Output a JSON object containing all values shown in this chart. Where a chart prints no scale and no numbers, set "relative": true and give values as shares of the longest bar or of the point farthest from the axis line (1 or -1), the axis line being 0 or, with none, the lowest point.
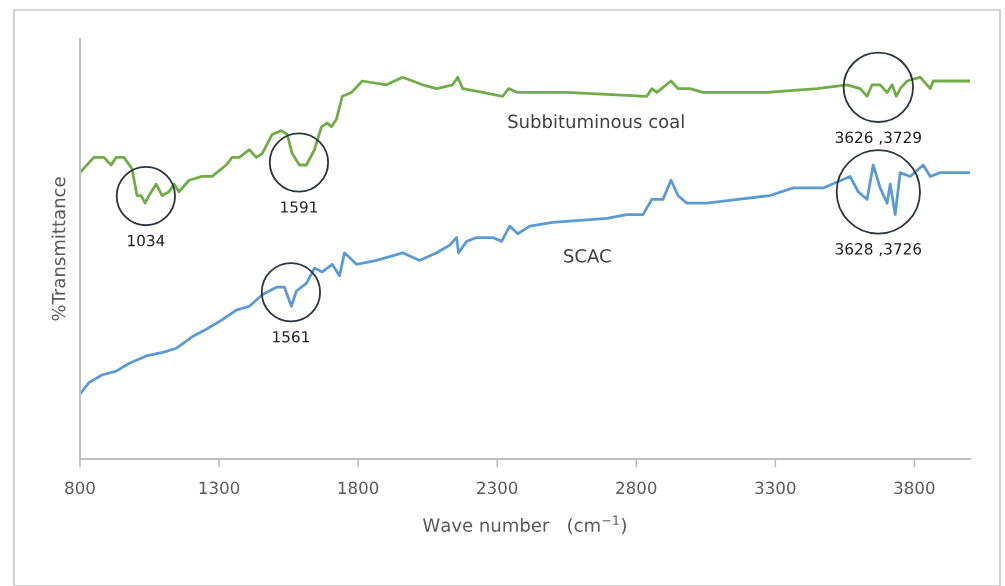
{
  "chart_data": {
    "type": "line",
    "relative": true,
    "xlabel": "Wave number   (cm$^{−1}$)",
    "ylabel": "%Transmittance",
    "xlim": [
      800,
      4000
    ],
    "xticks": [
      800,
      1300,
      1800,
      2300,
      2800,
      3300,
      3800
    ],
    "grid": false,
    "legend": false,
    "marker": "none",
    "line_style": "solid",
    "series": [
      {
        "name": "Subbituminous coal",
        "color": "#70ad47",
        "x": [
          800,
          850,
          886,
          912,
          930,
          958,
          987,
          1005,
          1020,
          1034,
          1048,
          1074,
          1095,
          1120,
          1138,
          1156,
          1192,
          1239,
          1275,
          1326,
          1347,
          1373,
          1409,
          1434,
          1455,
          1491,
          1524,
          1545,
          1563,
          1589,
          1614,
          1643,
          1668,
          1689,
          1704,
          1722,
          1743,
          1776,
          1815,
          1902,
          1960,
          2032,
          2082,
          2140,
          2158,
          2176,
          2248,
          2320,
          2341,
          2374,
          2550,
          2838,
          2856,
          2874,
          2925,
          2950,
          2993,
          3040,
          3270,
          3450,
          3558,
          3605,
          3630,
          3648,
          3677,
          3702,
          3720,
          3735,
          3749,
          3774,
          3821,
          3857,
          3868,
          4000
        ],
        "values": [
          0.75,
          0.79,
          0.79,
          0.77,
          0.79,
          0.79,
          0.76,
          0.69,
          0.69,
          0.67,
          0.69,
          0.72,
          0.69,
          0.7,
          0.72,
          0.7,
          0.73,
          0.74,
          0.74,
          0.77,
          0.79,
          0.79,
          0.81,
          0.79,
          0.8,
          0.85,
          0.86,
          0.85,
          0.8,
          0.77,
          0.77,
          0.81,
          0.87,
          0.88,
          0.87,
          0.89,
          0.95,
          0.96,
          0.99,
          0.98,
          1.0,
          0.98,
          0.97,
          0.98,
          1.0,
          0.97,
          0.96,
          0.95,
          0.97,
          0.96,
          0.96,
          0.95,
          0.97,
          0.96,
          0.99,
          0.97,
          0.97,
          0.96,
          0.96,
          0.97,
          0.98,
          0.97,
          0.95,
          0.98,
          0.98,
          0.96,
          0.98,
          0.95,
          0.97,
          0.99,
          1.0,
          0.97,
          0.99,
          0.99
        ]
      },
      {
        "name": "SCAC",
        "color": "#5b9bd5",
        "x": [
          800,
          832,
          879,
          930,
          976,
          1038,
          1102,
          1146,
          1203,
          1254,
          1301,
          1362,
          1409,
          1455,
          1506,
          1535,
          1560,
          1578,
          1614,
          1643,
          1671,
          1707,
          1733,
          1751,
          1794,
          1866,
          1960,
          2021,
          2082,
          2129,
          2154,
          2161,
          2190,
          2226,
          2284,
          2316,
          2345,
          2374,
          2417,
          2500,
          2694,
          2766,
          2824,
          2856,
          2896,
          2925,
          2950,
          2982,
          3054,
          3166,
          3281,
          3364,
          3472,
          3569,
          3598,
          3630,
          3652,
          3677,
          3702,
          3713,
          3731,
          3749,
          3785,
          3832,
          3857,
          3893,
          4000
        ],
        "values": [
          0.17,
          0.2,
          0.22,
          0.23,
          0.25,
          0.27,
          0.28,
          0.29,
          0.32,
          0.34,
          0.36,
          0.39,
          0.4,
          0.43,
          0.45,
          0.45,
          0.4,
          0.44,
          0.46,
          0.5,
          0.49,
          0.51,
          0.48,
          0.54,
          0.51,
          0.52,
          0.54,
          0.52,
          0.54,
          0.56,
          0.58,
          0.54,
          0.57,
          0.58,
          0.58,
          0.57,
          0.61,
          0.59,
          0.61,
          0.62,
          0.63,
          0.64,
          0.64,
          0.68,
          0.68,
          0.73,
          0.69,
          0.67,
          0.67,
          0.68,
          0.69,
          0.71,
          0.71,
          0.74,
          0.7,
          0.68,
          0.77,
          0.71,
          0.67,
          0.72,
          0.64,
          0.75,
          0.74,
          0.77,
          0.74,
          0.75,
          0.75
        ]
      }
    ],
    "annotations": [
      "1034",
      "1591",
      "1561",
      "3626 ,3729",
      "3628 ,3726"
    ]
  }
}
